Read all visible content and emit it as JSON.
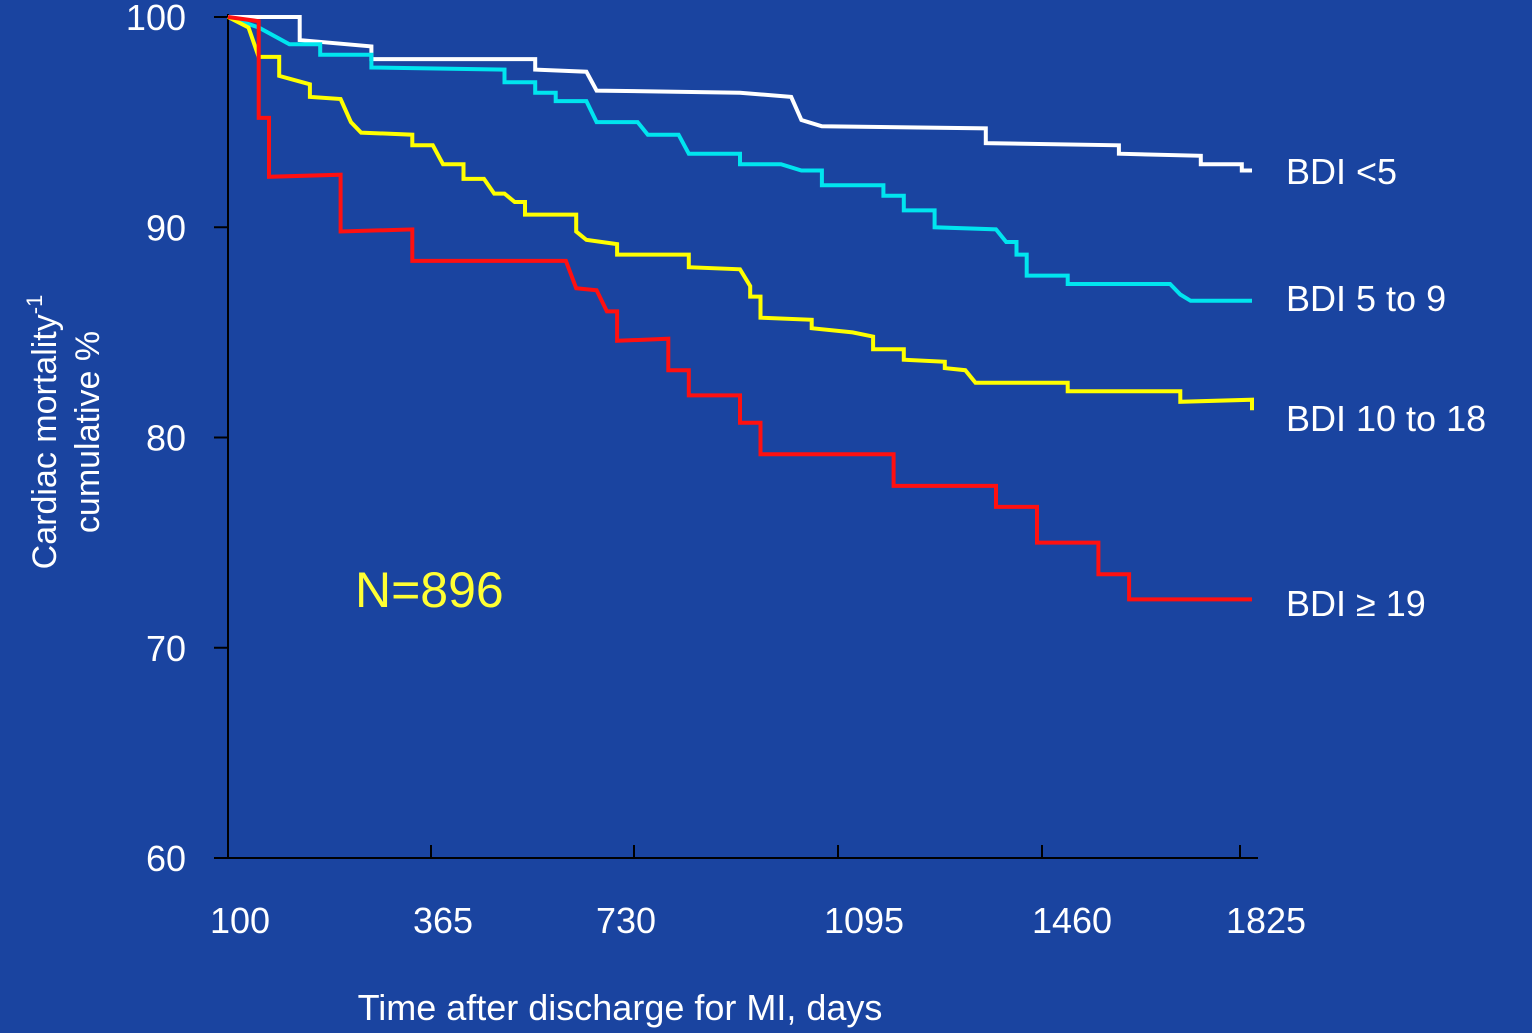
{
  "chart_data": {
    "type": "line",
    "xlabel": "Time after discharge for MI, days",
    "ylabel_line1": "Cardiac mortality",
    "ylabel_superscript": "-1",
    "ylabel_line2": "cumulative %",
    "annotation": "N=896",
    "x_ticks": [
      "100",
      "365",
      "730",
      "1095",
      "1460",
      "1825"
    ],
    "y_ticks": [
      "100",
      "90",
      "80",
      "70",
      "60"
    ],
    "y_tick_values": [
      100,
      90,
      80,
      70,
      60
    ],
    "ylim": [
      60,
      100
    ],
    "grid": false,
    "legend": "series labels at right end of lines",
    "series": [
      {
        "name": "BDI <5",
        "color": "#ffffff",
        "points": [
          [
            0,
            100
          ],
          [
            0.07,
            100
          ],
          [
            0.07,
            98.9
          ],
          [
            0.14,
            98.6
          ],
          [
            0.14,
            98.0
          ],
          [
            0.3,
            98.0
          ],
          [
            0.3,
            97.5
          ],
          [
            0.35,
            97.4
          ],
          [
            0.36,
            96.5
          ],
          [
            0.5,
            96.4
          ],
          [
            0.55,
            96.2
          ],
          [
            0.56,
            95.1
          ],
          [
            0.58,
            94.8
          ],
          [
            0.74,
            94.7
          ],
          [
            0.74,
            94.0
          ],
          [
            0.87,
            93.9
          ],
          [
            0.87,
            93.5
          ],
          [
            0.95,
            93.4
          ],
          [
            0.95,
            93.0
          ],
          [
            0.99,
            93.0
          ],
          [
            0.99,
            92.7
          ],
          [
            1.0,
            92.7
          ]
        ]
      },
      {
        "name": "BDI 5 to 9",
        "color": "#00e5ef",
        "points": [
          [
            0,
            100
          ],
          [
            0.03,
            99.5
          ],
          [
            0.06,
            98.7
          ],
          [
            0.09,
            98.7
          ],
          [
            0.09,
            98.2
          ],
          [
            0.14,
            98.2
          ],
          [
            0.14,
            97.6
          ],
          [
            0.27,
            97.5
          ],
          [
            0.27,
            96.9
          ],
          [
            0.3,
            96.9
          ],
          [
            0.3,
            96.4
          ],
          [
            0.32,
            96.4
          ],
          [
            0.32,
            96.0
          ],
          [
            0.35,
            96.0
          ],
          [
            0.36,
            95.0
          ],
          [
            0.4,
            95.0
          ],
          [
            0.41,
            94.4
          ],
          [
            0.44,
            94.4
          ],
          [
            0.45,
            93.5
          ],
          [
            0.5,
            93.5
          ],
          [
            0.5,
            93.0
          ],
          [
            0.54,
            93.0
          ],
          [
            0.56,
            92.7
          ],
          [
            0.58,
            92.7
          ],
          [
            0.58,
            92.0
          ],
          [
            0.64,
            92.0
          ],
          [
            0.64,
            91.5
          ],
          [
            0.66,
            91.5
          ],
          [
            0.66,
            90.8
          ],
          [
            0.69,
            90.8
          ],
          [
            0.69,
            90.0
          ],
          [
            0.75,
            89.9
          ],
          [
            0.76,
            89.3
          ],
          [
            0.77,
            89.3
          ],
          [
            0.77,
            88.7
          ],
          [
            0.78,
            88.7
          ],
          [
            0.78,
            87.7
          ],
          [
            0.82,
            87.7
          ],
          [
            0.82,
            87.3
          ],
          [
            0.92,
            87.3
          ],
          [
            0.93,
            86.8
          ],
          [
            0.94,
            86.5
          ],
          [
            1.0,
            86.5
          ]
        ]
      },
      {
        "name": "BDI 10 to 18",
        "color": "#ffff00",
        "points": [
          [
            0,
            100
          ],
          [
            0.02,
            99.5
          ],
          [
            0.03,
            98.1
          ],
          [
            0.05,
            98.1
          ],
          [
            0.05,
            97.2
          ],
          [
            0.08,
            96.8
          ],
          [
            0.08,
            96.2
          ],
          [
            0.11,
            96.1
          ],
          [
            0.12,
            95.0
          ],
          [
            0.13,
            94.5
          ],
          [
            0.18,
            94.4
          ],
          [
            0.18,
            93.9
          ],
          [
            0.2,
            93.9
          ],
          [
            0.21,
            93.0
          ],
          [
            0.23,
            93.0
          ],
          [
            0.23,
            92.3
          ],
          [
            0.25,
            92.3
          ],
          [
            0.26,
            91.6
          ],
          [
            0.27,
            91.6
          ],
          [
            0.28,
            91.2
          ],
          [
            0.29,
            91.2
          ],
          [
            0.29,
            90.6
          ],
          [
            0.34,
            90.6
          ],
          [
            0.34,
            89.8
          ],
          [
            0.35,
            89.4
          ],
          [
            0.38,
            89.2
          ],
          [
            0.38,
            88.7
          ],
          [
            0.45,
            88.7
          ],
          [
            0.45,
            88.1
          ],
          [
            0.5,
            88.0
          ],
          [
            0.51,
            87.2
          ],
          [
            0.51,
            86.7
          ],
          [
            0.52,
            86.7
          ],
          [
            0.52,
            85.7
          ],
          [
            0.57,
            85.6
          ],
          [
            0.57,
            85.2
          ],
          [
            0.61,
            85.0
          ],
          [
            0.63,
            84.8
          ],
          [
            0.63,
            84.2
          ],
          [
            0.66,
            84.2
          ],
          [
            0.66,
            83.7
          ],
          [
            0.7,
            83.6
          ],
          [
            0.7,
            83.3
          ],
          [
            0.72,
            83.2
          ],
          [
            0.73,
            82.6
          ],
          [
            0.82,
            82.6
          ],
          [
            0.82,
            82.2
          ],
          [
            0.93,
            82.2
          ],
          [
            0.93,
            81.7
          ],
          [
            1.0,
            81.8
          ],
          [
            1.0,
            81.3
          ]
        ]
      },
      {
        "name": "BDI ≥ 19",
        "color": "#ff1010",
        "points": [
          [
            0,
            100
          ],
          [
            0.03,
            99.8
          ],
          [
            0.03,
            95.2
          ],
          [
            0.04,
            95.2
          ],
          [
            0.04,
            92.4
          ],
          [
            0.11,
            92.5
          ],
          [
            0.11,
            89.8
          ],
          [
            0.18,
            89.9
          ],
          [
            0.18,
            88.4
          ],
          [
            0.33,
            88.4
          ],
          [
            0.34,
            87.1
          ],
          [
            0.36,
            87.0
          ],
          [
            0.37,
            86.0
          ],
          [
            0.38,
            86.0
          ],
          [
            0.38,
            84.6
          ],
          [
            0.43,
            84.7
          ],
          [
            0.43,
            83.2
          ],
          [
            0.45,
            83.2
          ],
          [
            0.45,
            82.0
          ],
          [
            0.5,
            82.0
          ],
          [
            0.5,
            80.7
          ],
          [
            0.52,
            80.7
          ],
          [
            0.52,
            79.2
          ],
          [
            0.65,
            79.2
          ],
          [
            0.65,
            77.7
          ],
          [
            0.75,
            77.7
          ],
          [
            0.75,
            76.7
          ],
          [
            0.79,
            76.7
          ],
          [
            0.79,
            75.0
          ],
          [
            0.85,
            75.0
          ],
          [
            0.85,
            73.5
          ],
          [
            0.88,
            73.5
          ],
          [
            0.88,
            72.3
          ],
          [
            1.0,
            72.3
          ]
        ]
      }
    ]
  }
}
